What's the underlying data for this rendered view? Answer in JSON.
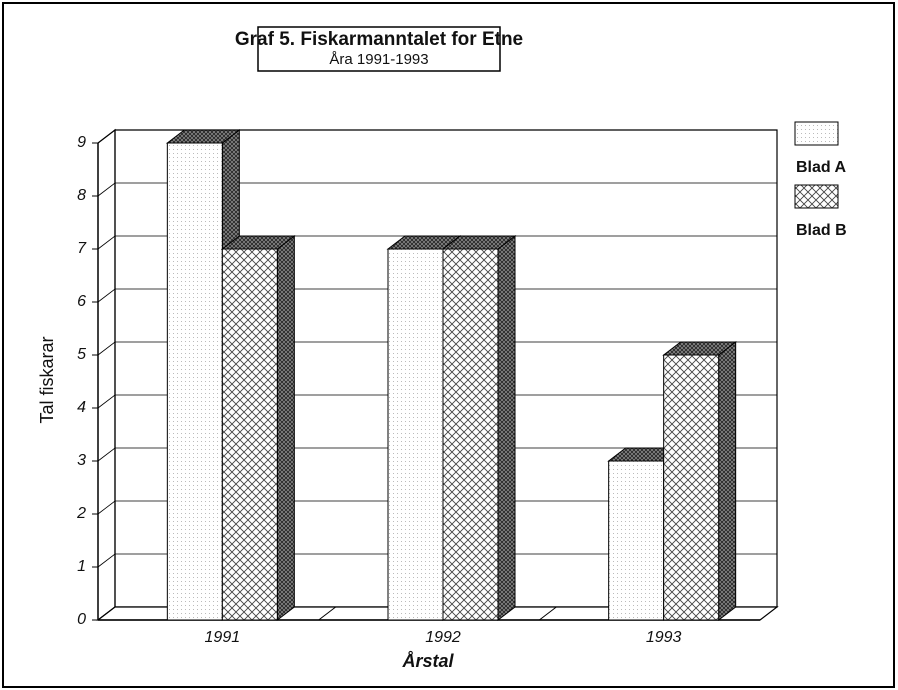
{
  "chart_data": {
    "type": "bar3d",
    "title": "Graf 5. Fiskarmanntalet for Etne",
    "subtitle": "Åra 1991-1993",
    "x_label": "Årstal",
    "y_label": "Tal fiskarar",
    "categories": [
      "1991",
      "1992",
      "1993"
    ],
    "series": [
      {
        "name": "Blad A",
        "color": "#ffffff",
        "values": [
          9,
          7,
          3
        ]
      },
      {
        "name": "Blad B",
        "color": "#cccccc",
        "values": [
          7,
          7,
          5
        ]
      }
    ],
    "ylim": [
      0,
      9
    ],
    "yticks": [
      0,
      1,
      2,
      3,
      4,
      5,
      6,
      7,
      8,
      9
    ],
    "grid": true,
    "legend": "right"
  }
}
